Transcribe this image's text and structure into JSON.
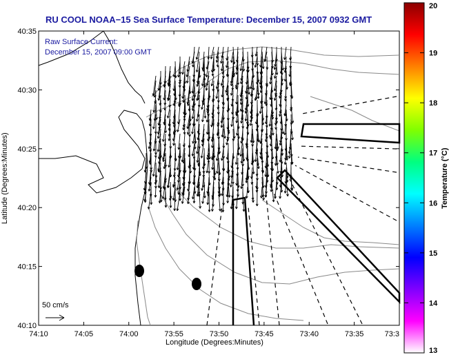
{
  "chart_data": {
    "type": "vector-field map",
    "title": "RU COOL  NOAA−15  Sea Surface Temperature:  December 15, 2007 0932 GMT",
    "annotation_lines": [
      "Raw Surface Current:",
      "December 15, 2007 09:00 GMT"
    ],
    "scale_label": "50 cm/s",
    "xlabel": "Longitude (Degrees:Minutes)",
    "ylabel": "Latitude (Degrees:Minutes)",
    "x_ticks": [
      "74:10",
      "74:05",
      "74:00",
      "73:55",
      "73:50",
      "73:45",
      "73:40",
      "73:35",
      "73:3"
    ],
    "y_ticks": [
      "40:35",
      "40:30",
      "40:25",
      "40:20",
      "40:15",
      "40:10"
    ],
    "colorbar": {
      "label": "Temperature (°C)",
      "ticks": [
        "20",
        "19",
        "18",
        "17",
        "16",
        "15",
        "14",
        "13"
      ],
      "range": [
        13,
        20
      ],
      "colors": [
        "#8b0000",
        "#ff0000",
        "#ff8000",
        "#ffff00",
        "#80ff00",
        "#00ff80",
        "#00ffff",
        "#0080ff",
        "#0000ff",
        "#8000ff",
        "#ff00ff",
        "#ffffff"
      ]
    },
    "current_field": {
      "region_lon_deg": [
        -74.0,
        -73.733
      ],
      "region_lat_deg": [
        40.333,
        40.55
      ],
      "dominant_flow": "southward / south-southwest",
      "max_speed_cm_s": 50
    }
  }
}
